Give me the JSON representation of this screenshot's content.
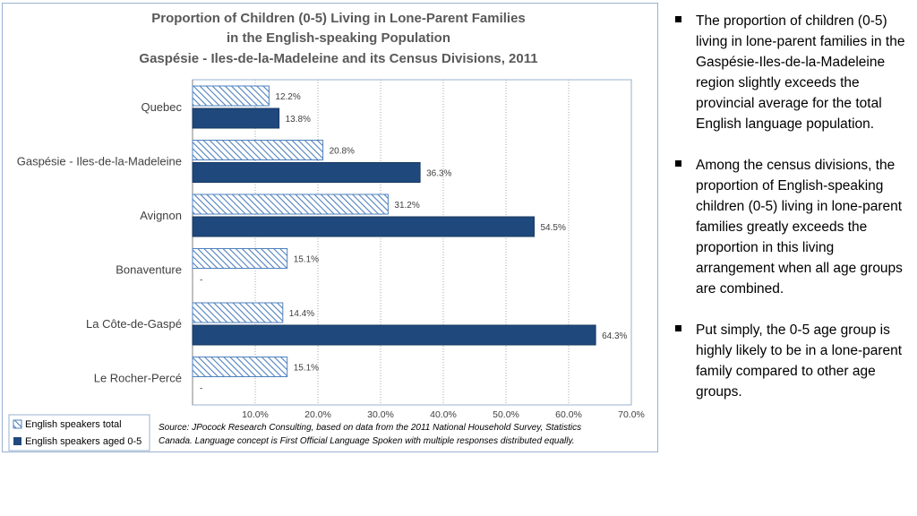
{
  "chart_data": {
    "type": "bar",
    "orientation": "horizontal",
    "title_lines": [
      "Proportion of Children (0-5) Living in Lone-Parent Families",
      "in the English-speaking Population",
      "Gaspésie - Iles-de-la-Madeleine and its Census Divisions, 2011"
    ],
    "categories": [
      "Quebec",
      "Gaspésie - Iles-de-la-Madeleine",
      "Avignon",
      "Bonaventure",
      "La Côte-de-Gaspé",
      "Le Rocher-Percé"
    ],
    "series": [
      {
        "name": "English speakers total",
        "values": [
          12.2,
          20.8,
          31.2,
          15.1,
          14.4,
          15.1
        ],
        "labels": [
          "12.2%",
          "20.8%",
          "31.2%",
          "15.1%",
          "14.4%",
          "15.1%"
        ],
        "color": "#4f81bd",
        "pattern": "diagonal-hatch"
      },
      {
        "name": "English speakers aged 0-5",
        "values": [
          13.8,
          36.3,
          54.5,
          null,
          64.3,
          null
        ],
        "labels": [
          "13.8%",
          "36.3%",
          "54.5%",
          "-",
          "64.3%",
          "-"
        ],
        "color": "#1f497d",
        "pattern": "solid"
      }
    ],
    "xlim": [
      0,
      70
    ],
    "ticks": [
      0,
      10,
      20,
      30,
      40,
      50,
      60,
      70
    ],
    "tick_labels": [
      "",
      "10.0%",
      "20.0%",
      "30.0%",
      "40.0%",
      "50.0%",
      "60.0%",
      "70.0%"
    ],
    "grid": true,
    "legend_position": "bottom-left",
    "source_lines": [
      "Source: JPocock Research Consulting, based on data from the 2011 National Household Survey, Statistics",
      "Canada. Language concept is First Official Language Spoken with multiple responses distributed equally."
    ]
  },
  "bullets": [
    "The proportion of children (0-5) living in lone-parent families in the Gaspésie-Iles-de-la-Madeleine region slightly exceeds the provincial average for the total English language population.",
    "Among the census divisions, the proportion of English-speaking children (0-5) living in lone-parent families greatly exceeds the proportion in this living arrangement when all age groups are combined.",
    "Put simply, the 0-5 age group is highly likely to be in a lone-parent family compared to other age groups."
  ]
}
